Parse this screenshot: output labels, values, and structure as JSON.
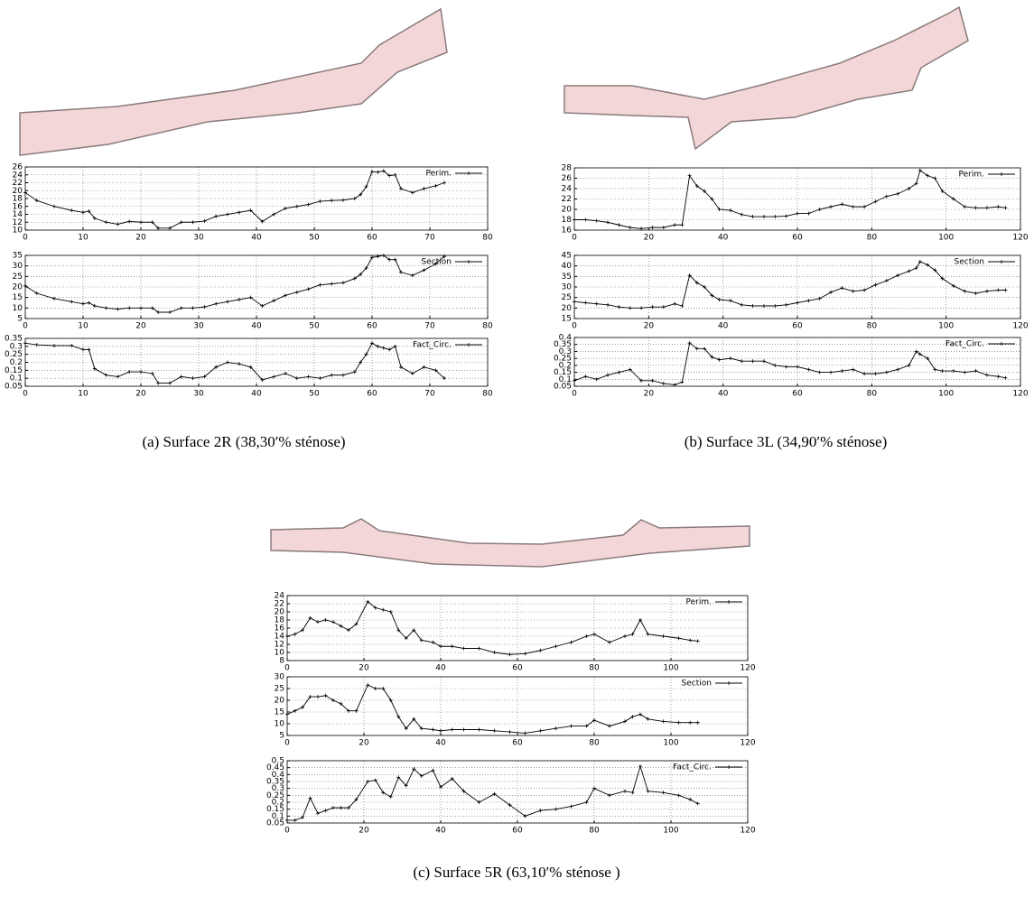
{
  "captions": [
    "(a) Surface 2R (38,30′% sténose)",
    "(b) Surface 3L (34,90′% sténose)",
    "(c) Surface 5R (63,10′% sténose )"
  ],
  "chart_data": [
    {
      "type": "line",
      "xlim": [
        0,
        80
      ],
      "ylim": [
        10,
        26
      ],
      "xticks": [
        0,
        10,
        20,
        30,
        40,
        50,
        60,
        70,
        80
      ],
      "yticks": [
        10,
        12,
        14,
        16,
        18,
        20,
        22,
        24,
        26
      ],
      "grid": true,
      "legend": "upper right",
      "x": [
        0,
        2,
        5,
        8,
        10,
        11,
        12,
        14,
        16,
        18,
        20,
        22,
        23,
        25,
        27,
        29,
        31,
        33,
        35,
        37,
        39,
        41,
        43,
        45,
        47,
        49,
        51,
        53,
        55,
        57,
        58,
        59,
        60,
        61,
        62,
        63,
        64,
        65,
        67,
        69,
        71,
        72.5
      ],
      "series": [
        {
          "name": "Perim.",
          "color": "#000000",
          "values": [
            19.5,
            17.5,
            16,
            15,
            14.5,
            14.8,
            13,
            12,
            11.5,
            12.2,
            12,
            12,
            10.5,
            10.5,
            12,
            12,
            12.3,
            13.5,
            14,
            14.5,
            15,
            12.2,
            14,
            15.5,
            16,
            16.5,
            17.3,
            17.5,
            17.6,
            18,
            19,
            21,
            24.8,
            24.7,
            25,
            23.8,
            24,
            20.5,
            19.5,
            20.5,
            21.2,
            22
          ]
        }
      ]
    },
    {
      "type": "line",
      "xlim": [
        0,
        80
      ],
      "ylim": [
        5,
        35
      ],
      "xticks": [
        0,
        10,
        20,
        30,
        40,
        50,
        60,
        70,
        80
      ],
      "yticks": [
        5,
        10,
        15,
        20,
        25,
        30,
        35
      ],
      "grid": true,
      "legend": "upper right",
      "x": [
        0,
        2,
        5,
        8,
        10,
        11,
        12,
        14,
        16,
        18,
        20,
        22,
        23,
        25,
        27,
        29,
        31,
        33,
        35,
        37,
        39,
        41,
        43,
        45,
        47,
        49,
        51,
        53,
        55,
        57,
        58,
        59,
        60,
        61,
        62,
        63,
        64,
        65,
        67,
        69,
        71,
        72.5
      ],
      "series": [
        {
          "name": "Section",
          "color": "#000000",
          "values": [
            20.5,
            17,
            14.5,
            13,
            12,
            12.5,
            11,
            10,
            9.5,
            10,
            10,
            10,
            8,
            8,
            10,
            10,
            10.5,
            12,
            13,
            14,
            15,
            11,
            13.5,
            16,
            17.5,
            19,
            21,
            21.5,
            22,
            24,
            26,
            29,
            34,
            34.5,
            35,
            33,
            33,
            27,
            25.5,
            28,
            31,
            34.5
          ]
        }
      ]
    },
    {
      "type": "line",
      "xlim": [
        0,
        80
      ],
      "ylim": [
        0.05,
        0.35
      ],
      "xticks": [
        0,
        10,
        20,
        30,
        40,
        50,
        60,
        70,
        80
      ],
      "yticks": [
        0.05,
        0.1,
        0.15,
        0.2,
        0.25,
        0.3,
        0.35
      ],
      "grid": true,
      "legend": "upper right",
      "x": [
        0,
        2,
        5,
        8,
        10,
        11,
        12,
        14,
        16,
        18,
        20,
        22,
        23,
        25,
        27,
        29,
        31,
        33,
        35,
        37,
        39,
        41,
        43,
        45,
        47,
        49,
        51,
        53,
        55,
        57,
        58,
        59,
        60,
        61,
        62,
        63,
        64,
        65,
        67,
        69,
        71,
        72.5
      ],
      "series": [
        {
          "name": "Fact_Circ.",
          "color": "#000000",
          "values": [
            0.32,
            0.31,
            0.305,
            0.305,
            0.28,
            0.28,
            0.16,
            0.12,
            0.11,
            0.14,
            0.14,
            0.13,
            0.07,
            0.07,
            0.11,
            0.1,
            0.11,
            0.17,
            0.2,
            0.19,
            0.17,
            0.09,
            0.11,
            0.13,
            0.1,
            0.11,
            0.1,
            0.12,
            0.12,
            0.14,
            0.2,
            0.25,
            0.32,
            0.3,
            0.29,
            0.28,
            0.3,
            0.17,
            0.13,
            0.17,
            0.15,
            0.1
          ]
        }
      ]
    },
    {
      "type": "line",
      "xlim": [
        0,
        120
      ],
      "ylim": [
        16,
        28
      ],
      "xticks": [
        0,
        20,
        40,
        60,
        80,
        100,
        120
      ],
      "yticks": [
        16,
        18,
        20,
        22,
        24,
        26,
        28
      ],
      "grid": true,
      "legend": "upper right",
      "x": [
        0,
        3,
        6,
        9,
        12,
        15,
        18,
        21,
        24,
        27,
        29,
        31,
        33,
        35,
        37,
        39,
        42,
        45,
        48,
        51,
        54,
        57,
        60,
        63,
        66,
        69,
        72,
        75,
        78,
        81,
        84,
        87,
        90,
        92,
        93,
        95,
        97,
        99,
        102,
        105,
        108,
        111,
        114,
        116
      ],
      "series": [
        {
          "name": "Perim.",
          "color": "#000000",
          "values": [
            18,
            18,
            17.8,
            17.5,
            17,
            16.5,
            16.3,
            16.5,
            16.5,
            17,
            17,
            26.5,
            24.5,
            23.5,
            22,
            20,
            19.8,
            19,
            18.6,
            18.6,
            18.6,
            18.7,
            19.2,
            19.2,
            20,
            20.5,
            21,
            20.5,
            20.5,
            21.5,
            22.5,
            23,
            24,
            25,
            27.5,
            26.5,
            26,
            23.5,
            22,
            20.5,
            20.3,
            20.3,
            20.5,
            20.3
          ]
        }
      ]
    },
    {
      "type": "line",
      "xlim": [
        0,
        120
      ],
      "ylim": [
        15,
        45
      ],
      "xticks": [
        0,
        20,
        40,
        60,
        80,
        100,
        120
      ],
      "yticks": [
        15,
        20,
        25,
        30,
        35,
        40,
        45
      ],
      "grid": true,
      "legend": "upper right",
      "x": [
        0,
        3,
        6,
        9,
        12,
        15,
        18,
        21,
        24,
        27,
        29,
        31,
        33,
        35,
        37,
        39,
        42,
        45,
        48,
        51,
        54,
        57,
        60,
        63,
        66,
        69,
        72,
        75,
        78,
        81,
        84,
        87,
        90,
        92,
        93,
        95,
        97,
        99,
        102,
        105,
        108,
        111,
        114,
        116
      ],
      "series": [
        {
          "name": "Section",
          "color": "#000000",
          "values": [
            23,
            22.5,
            22,
            21.5,
            20.5,
            20,
            20,
            20.5,
            20.5,
            22,
            21,
            35.5,
            32,
            30,
            26,
            24,
            23.5,
            21.5,
            21,
            21,
            21,
            21.5,
            22.5,
            23.5,
            24.5,
            27.5,
            29.5,
            28,
            28.5,
            31,
            33,
            35.5,
            37.5,
            39,
            42,
            40.5,
            38,
            34,
            30.5,
            28,
            27,
            28,
            28.5,
            28.5
          ]
        }
      ]
    },
    {
      "type": "line",
      "xlim": [
        0,
        120
      ],
      "ylim": [
        0.05,
        0.4
      ],
      "xticks": [
        0,
        20,
        40,
        60,
        80,
        100,
        120
      ],
      "yticks": [
        0.05,
        0.1,
        0.15,
        0.2,
        0.25,
        0.3,
        0.35,
        0.4
      ],
      "grid": true,
      "legend": "upper right",
      "x": [
        0,
        3,
        6,
        9,
        12,
        15,
        18,
        21,
        24,
        27,
        29,
        31,
        33,
        35,
        37,
        39,
        42,
        45,
        48,
        51,
        54,
        57,
        60,
        63,
        66,
        69,
        72,
        75,
        78,
        81,
        84,
        87,
        90,
        92,
        93,
        95,
        97,
        99,
        102,
        105,
        108,
        111,
        114,
        116
      ],
      "series": [
        {
          "name": "Fact_Circ.",
          "color": "#000000",
          "values": [
            0.09,
            0.12,
            0.1,
            0.13,
            0.15,
            0.17,
            0.09,
            0.09,
            0.07,
            0.06,
            0.08,
            0.36,
            0.32,
            0.32,
            0.26,
            0.24,
            0.25,
            0.23,
            0.23,
            0.23,
            0.2,
            0.19,
            0.19,
            0.17,
            0.15,
            0.15,
            0.16,
            0.17,
            0.14,
            0.14,
            0.15,
            0.17,
            0.2,
            0.3,
            0.28,
            0.25,
            0.17,
            0.16,
            0.16,
            0.15,
            0.16,
            0.13,
            0.12,
            0.11
          ]
        }
      ]
    },
    {
      "type": "line",
      "xlim": [
        0,
        120
      ],
      "ylim": [
        8,
        24
      ],
      "xticks": [
        0,
        20,
        40,
        60,
        80,
        100,
        120
      ],
      "yticks": [
        8,
        10,
        12,
        14,
        16,
        18,
        20,
        22,
        24
      ],
      "grid": true,
      "legend": "upper right",
      "x": [
        0,
        2,
        4,
        6,
        8,
        10,
        12,
        14,
        16,
        18,
        21,
        23,
        25,
        27,
        29,
        31,
        33,
        35,
        38,
        40,
        43,
        46,
        50,
        54,
        58,
        62,
        66,
        70,
        74,
        78,
        80,
        84,
        88,
        90,
        92,
        94,
        98,
        102,
        105,
        107
      ],
      "series": [
        {
          "name": "Perim.",
          "color": "#000000",
          "values": [
            14,
            14.5,
            15.5,
            18.5,
            17.5,
            18,
            17.5,
            16.5,
            15.5,
            17,
            22.5,
            21,
            20.5,
            20,
            15.5,
            13.5,
            15.5,
            13,
            12.5,
            11.5,
            11.5,
            11,
            11,
            10,
            9.5,
            9.7,
            10.5,
            11.5,
            12.5,
            14,
            14.5,
            12.5,
            14,
            14.5,
            18,
            14.5,
            14,
            13.5,
            13,
            12.8
          ]
        }
      ]
    },
    {
      "type": "line",
      "xlim": [
        0,
        120
      ],
      "ylim": [
        5,
        30
      ],
      "xticks": [
        0,
        20,
        40,
        60,
        80,
        100,
        120
      ],
      "yticks": [
        5,
        10,
        15,
        20,
        25,
        30
      ],
      "grid": true,
      "legend": "upper right",
      "x": [
        0,
        2,
        4,
        6,
        8,
        10,
        12,
        14,
        16,
        18,
        21,
        23,
        25,
        27,
        29,
        31,
        33,
        35,
        38,
        40,
        43,
        46,
        50,
        54,
        58,
        62,
        66,
        70,
        74,
        78,
        80,
        84,
        88,
        90,
        92,
        94,
        98,
        102,
        105,
        107
      ],
      "series": [
        {
          "name": "Section",
          "color": "#000000",
          "values": [
            14,
            15.5,
            17,
            21.5,
            21.5,
            22,
            20,
            18.5,
            15.5,
            15.5,
            26.5,
            25,
            25,
            20,
            13,
            8,
            12,
            8,
            7.5,
            7,
            7.5,
            7.5,
            7.5,
            7,
            6.5,
            6,
            7,
            8,
            9,
            9,
            11.5,
            9,
            11,
            13,
            14,
            12,
            11,
            10.5,
            10.5,
            10.5
          ]
        }
      ]
    },
    {
      "type": "line",
      "xlim": [
        0,
        120
      ],
      "ylim": [
        0.05,
        0.5
      ],
      "xticks": [
        0,
        20,
        40,
        60,
        80,
        100,
        120
      ],
      "yticks": [
        0.05,
        0.1,
        0.15,
        0.2,
        0.25,
        0.3,
        0.35,
        0.4,
        0.45,
        0.5
      ],
      "grid": true,
      "legend": "upper right",
      "x": [
        0,
        2,
        4,
        6,
        8,
        10,
        12,
        14,
        16,
        18,
        21,
        23,
        25,
        27,
        29,
        31,
        33,
        35,
        38,
        40,
        43,
        46,
        50,
        54,
        58,
        62,
        66,
        70,
        74,
        78,
        80,
        84,
        88,
        90,
        92,
        94,
        98,
        102,
        105,
        107
      ],
      "series": [
        {
          "name": "Fact_Circ.",
          "color": "#000000",
          "values": [
            0.07,
            0.07,
            0.09,
            0.23,
            0.12,
            0.14,
            0.16,
            0.16,
            0.16,
            0.22,
            0.35,
            0.36,
            0.27,
            0.24,
            0.38,
            0.32,
            0.44,
            0.39,
            0.43,
            0.31,
            0.37,
            0.28,
            0.2,
            0.26,
            0.18,
            0.1,
            0.14,
            0.15,
            0.17,
            0.2,
            0.3,
            0.25,
            0.28,
            0.27,
            0.46,
            0.28,
            0.27,
            0.25,
            0.22,
            0.19
          ]
        }
      ]
    }
  ]
}
